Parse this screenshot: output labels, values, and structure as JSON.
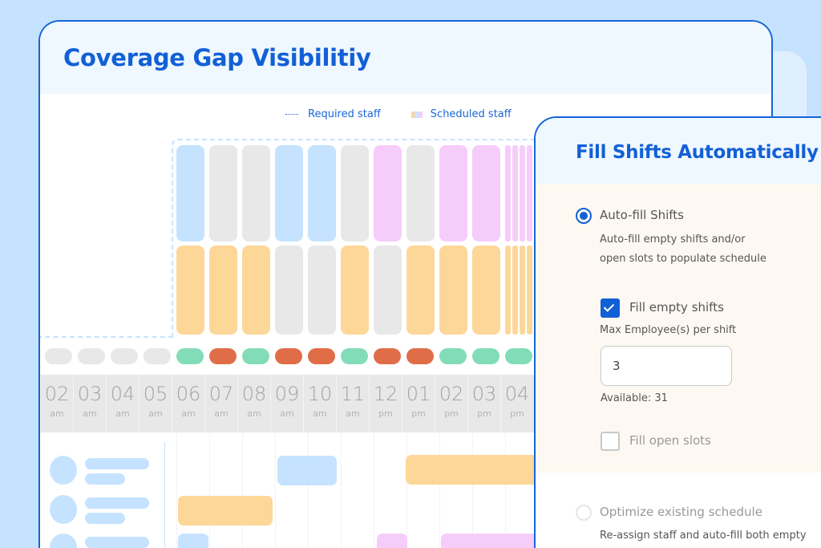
{
  "main": {
    "title": "Coverage Gap Visibilitiy",
    "legend": {
      "required_label": "Required staff",
      "scheduled_label": "Scheduled staff",
      "scheduled_swatch_colors": [
        "#fdd798",
        "#c5e3fe",
        "#f6ccfb"
      ]
    }
  },
  "colors": {
    "accent": "#1260d6",
    "blue": "#c5e3fe",
    "gray": "#e8e8e8",
    "pink": "#f6ccfb",
    "orange": "#fdd798",
    "green": "#83dcb8",
    "red": "#df6e48"
  },
  "coverage": {
    "top_row": [
      "blue",
      "gray",
      "gray",
      "blue",
      "blue",
      "gray",
      "pink",
      "gray",
      "pink",
      "pink"
    ],
    "bottom_row": [
      "orange",
      "orange",
      "orange",
      "gray",
      "gray",
      "orange",
      "gray",
      "orange",
      "orange",
      "orange"
    ],
    "status_pills": [
      "gray",
      "gray",
      "gray",
      "gray",
      "green",
      "red",
      "green",
      "red",
      "red",
      "green",
      "red",
      "red",
      "green",
      "green",
      "green"
    ]
  },
  "timeline": [
    {
      "hour": "02",
      "period": "am"
    },
    {
      "hour": "03",
      "period": "am"
    },
    {
      "hour": "04",
      "period": "am"
    },
    {
      "hour": "05",
      "period": "am"
    },
    {
      "hour": "06",
      "period": "am"
    },
    {
      "hour": "07",
      "period": "am"
    },
    {
      "hour": "08",
      "period": "am"
    },
    {
      "hour": "09",
      "period": "am"
    },
    {
      "hour": "10",
      "period": "am"
    },
    {
      "hour": "11",
      "period": "am"
    },
    {
      "hour": "12",
      "period": "pm"
    },
    {
      "hour": "01",
      "period": "pm"
    },
    {
      "hour": "02",
      "period": "pm"
    },
    {
      "hour": "03",
      "period": "pm"
    },
    {
      "hour": "04",
      "period": "pm"
    }
  ],
  "panel": {
    "title": "Fill Shifts Automatically",
    "option_autofill": {
      "label": "Auto-fill Shifts",
      "selected": true,
      "description_line1": "Auto-fill empty shifts and/or",
      "description_line2": "open slots to populate schedule"
    },
    "fill_empty": {
      "label": "Fill empty shifts",
      "checked": true
    },
    "max_employees": {
      "label": "Max Employee(s) per shift",
      "value": "3",
      "available": "Available: 31"
    },
    "fill_open": {
      "label": "Fill open slots",
      "checked": false
    },
    "option_optimize": {
      "label": "Optimize existing schedule",
      "selected": false,
      "description_line1": "Re-assign staff and auto-fill both empty"
    }
  }
}
